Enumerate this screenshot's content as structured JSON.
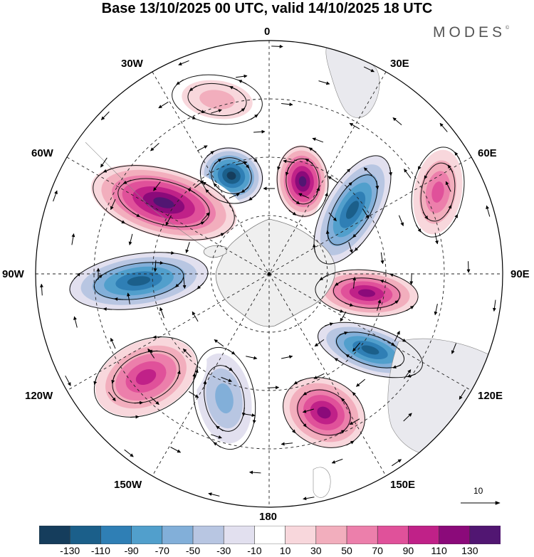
{
  "title": "Base 13/10/2025 00 UTC, valid 14/10/2025 18 UTC",
  "brand": {
    "name": "MODES",
    "mark": "©"
  },
  "map": {
    "projection": "south polar stereographic",
    "meridian_labels": {
      "lon_0": "0",
      "lon_30e": "30E",
      "lon_60e": "60E",
      "lon_90e": "90E",
      "lon_120e": "120E",
      "lon_150e": "150E",
      "lon_180": "180",
      "lon_150w": "150W",
      "lon_120w": "120W",
      "lon_90w": "90W",
      "lon_60w": "60W",
      "lon_30w": "30W"
    },
    "anomaly_centers": [
      {
        "id": "neg-0",
        "sign": "negative",
        "peak": -130
      },
      {
        "id": "pos-15e",
        "sign": "positive",
        "peak": 130
      },
      {
        "id": "neg-45e",
        "sign": "negative",
        "peak": -110
      },
      {
        "id": "pos-60e",
        "sign": "positive",
        "peak": 70
      },
      {
        "id": "pos-95e",
        "sign": "positive",
        "peak": 110
      },
      {
        "id": "neg-120e",
        "sign": "negative",
        "peak": -110
      },
      {
        "id": "pos-160e",
        "sign": "positive",
        "peak": 110
      },
      {
        "id": "neg-170w",
        "sign": "negative",
        "peak": -50
      },
      {
        "id": "pos-130w",
        "sign": "positive",
        "peak": 90
      },
      {
        "id": "neg-95w",
        "sign": "negative",
        "peak": -110
      },
      {
        "id": "pos-50w",
        "sign": "positive",
        "peak": 130
      },
      {
        "id": "pos-15w",
        "sign": "positive",
        "peak": 30
      }
    ]
  },
  "wind_reference": {
    "label": "10"
  },
  "colorbar": {
    "colors": [
      "#153d5c",
      "#1b5f8a",
      "#2f7fb5",
      "#519fcc",
      "#82afd9",
      "#b8c6e2",
      "#e2e0ef",
      "#ffffff",
      "#f8d7dc",
      "#f2aebd",
      "#ec7fab",
      "#e0519a",
      "#c02188",
      "#8b0a7a",
      "#511672"
    ],
    "ticks": [
      "-130",
      "-110",
      "-90",
      "-70",
      "-50",
      "-30",
      "-10",
      "10",
      "30",
      "50",
      "70",
      "90",
      "110",
      "130"
    ]
  }
}
